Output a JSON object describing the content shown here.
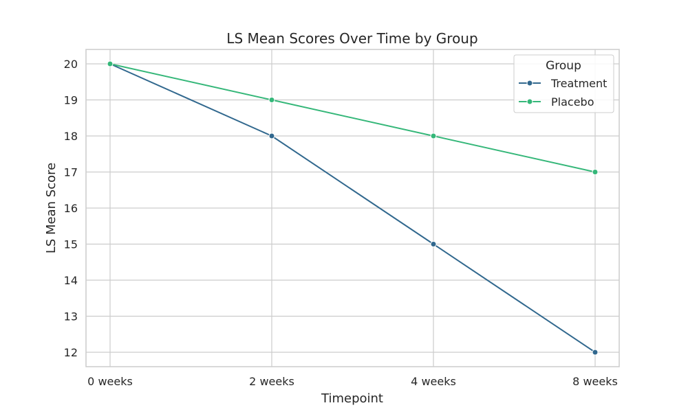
{
  "chart_data": {
    "type": "line",
    "title": "LS Mean Scores Over Time by Group",
    "xlabel": "Timepoint",
    "ylabel": "LS Mean Score",
    "categories": [
      "0 weeks",
      "2 weeks",
      "4 weeks",
      "8 weeks"
    ],
    "ylim": [
      11.6,
      20.4
    ],
    "yticks": [
      12,
      13,
      14,
      15,
      16,
      17,
      18,
      19,
      20
    ],
    "grid": true,
    "legend": {
      "title": "Group",
      "placement": "top-right"
    },
    "series": [
      {
        "name": "Treatment",
        "color": "#31688e",
        "values": [
          20,
          18,
          15,
          12
        ]
      },
      {
        "name": "Placebo",
        "color": "#35b779",
        "values": [
          20,
          19,
          18,
          17
        ]
      }
    ]
  }
}
